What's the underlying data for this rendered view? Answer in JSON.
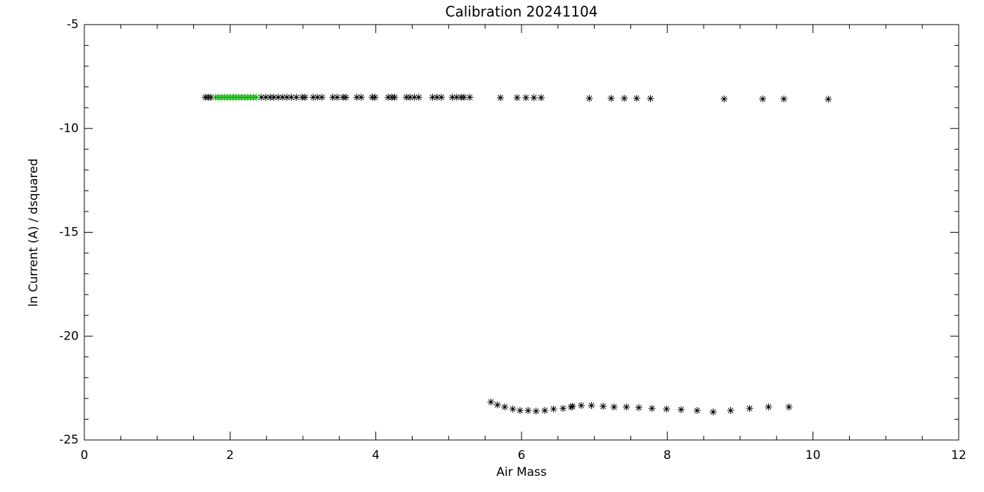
{
  "chart_data": {
    "type": "scatter",
    "title": "Calibration 20241104",
    "x_label": "Air Mass",
    "y_label": "ln Current (A) / dsquared",
    "xlim": [
      0,
      12
    ],
    "xticks": [
      0,
      2,
      4,
      6,
      8,
      10,
      12
    ],
    "ylim": [
      -25,
      -5
    ],
    "yticks": [
      -25,
      -20,
      -15,
      -10,
      -5
    ],
    "grid": false,
    "series": [
      {
        "color": "#000000",
        "x": [
          1.66,
          1.7,
          1.74,
          2.43,
          2.49,
          2.55,
          2.6,
          2.66,
          2.72,
          2.78,
          2.84,
          2.91,
          2.99,
          3.03,
          3.14,
          3.2,
          3.26,
          3.41,
          3.47,
          3.55,
          3.59,
          3.74,
          3.8,
          3.95,
          3.99,
          4.17,
          4.22,
          4.26,
          4.42,
          4.47,
          4.53,
          4.59,
          4.78,
          4.84,
          4.9,
          5.05,
          5.11,
          5.17,
          5.21,
          5.29,
          5.71,
          5.94,
          6.06,
          6.17,
          6.27,
          6.93,
          7.23,
          7.41,
          7.58,
          7.77,
          8.78,
          9.31,
          9.6,
          10.21,
          5.58,
          5.67,
          5.77,
          5.88,
          5.98,
          6.09,
          6.2,
          6.32,
          6.44,
          6.57,
          6.68,
          6.7,
          6.82,
          6.96,
          7.12,
          7.27,
          7.44,
          7.61,
          7.79,
          7.99,
          8.19,
          8.41,
          8.63,
          8.87,
          9.13,
          9.39,
          9.67
        ],
        "y": [
          -8.5,
          -8.5,
          -8.5,
          -8.5,
          -8.5,
          -8.5,
          -8.5,
          -8.5,
          -8.5,
          -8.5,
          -8.5,
          -8.5,
          -8.5,
          -8.5,
          -8.5,
          -8.5,
          -8.5,
          -8.5,
          -8.5,
          -8.5,
          -8.5,
          -8.5,
          -8.5,
          -8.5,
          -8.5,
          -8.5,
          -8.5,
          -8.5,
          -8.5,
          -8.5,
          -8.5,
          -8.5,
          -8.5,
          -8.5,
          -8.5,
          -8.5,
          -8.5,
          -8.5,
          -8.5,
          -8.5,
          -8.52,
          -8.52,
          -8.52,
          -8.52,
          -8.52,
          -8.55,
          -8.55,
          -8.55,
          -8.55,
          -8.56,
          -8.58,
          -8.58,
          -8.58,
          -8.59,
          -23.17,
          -23.31,
          -23.41,
          -23.51,
          -23.58,
          -23.58,
          -23.61,
          -23.58,
          -23.51,
          -23.48,
          -23.41,
          -23.38,
          -23.34,
          -23.34,
          -23.38,
          -23.41,
          -23.41,
          -23.44,
          -23.48,
          -23.51,
          -23.54,
          -23.58,
          -23.65,
          -23.58,
          -23.48,
          -23.41,
          -23.41
        ]
      },
      {
        "color": "#00b000",
        "x": [
          1.8,
          1.84,
          1.88,
          1.92,
          1.96,
          2.0,
          2.04,
          2.08,
          2.12,
          2.16,
          2.2,
          2.24,
          2.28,
          2.32,
          2.36
        ],
        "y": [
          -8.5,
          -8.5,
          -8.5,
          -8.5,
          -8.5,
          -8.5,
          -8.5,
          -8.5,
          -8.5,
          -8.5,
          -8.5,
          -8.5,
          -8.5,
          -8.5,
          -8.5
        ]
      }
    ]
  }
}
